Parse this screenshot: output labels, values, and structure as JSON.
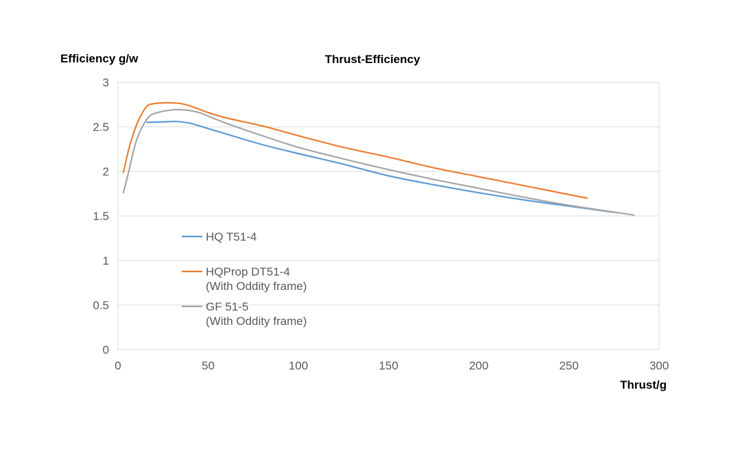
{
  "chart_data": {
    "type": "line",
    "title": "Thrust-Efficiency",
    "xlabel": "Thrust/g",
    "ylabel": "Efficiency g/w",
    "xlim": [
      0,
      300
    ],
    "ylim": [
      0,
      3
    ],
    "xticks": [
      0,
      50,
      100,
      150,
      200,
      250,
      300
    ],
    "yticks": [
      0,
      0.5,
      1,
      1.5,
      2,
      2.5,
      3
    ],
    "x_tick_labels": [
      "0",
      "50",
      "100",
      "150",
      "200",
      "250",
      "300"
    ],
    "y_tick_labels": [
      "0",
      "0.5",
      "1",
      "1.5",
      "2",
      "2.5",
      "3"
    ],
    "grid": true,
    "legend_position": "center-left",
    "series": [
      {
        "name": "HQ T51-4",
        "legend_lines": [
          "HQ T51-4"
        ],
        "color": "#5b9bd5",
        "x": [
          16,
          25,
          32,
          40,
          50,
          60,
          80,
          100,
          125,
          150,
          175,
          200,
          225,
          250,
          275
        ],
        "y": [
          2.55,
          2.555,
          2.56,
          2.54,
          2.48,
          2.42,
          2.3,
          2.2,
          2.08,
          1.95,
          1.85,
          1.76,
          1.68,
          1.61,
          1.54
        ]
      },
      {
        "name": "HQProp DT51-4 (With Oddity frame)",
        "legend_lines": [
          "HQProp DT51-4",
          "(With Oddity frame)"
        ],
        "color": "#ed7d31",
        "x": [
          3,
          6,
          9,
          12,
          16,
          20,
          27,
          35,
          42,
          50,
          60,
          80,
          100,
          125,
          150,
          175,
          200,
          225,
          260
        ],
        "y": [
          1.99,
          2.25,
          2.45,
          2.6,
          2.73,
          2.76,
          2.77,
          2.76,
          2.72,
          2.66,
          2.6,
          2.51,
          2.4,
          2.27,
          2.16,
          2.04,
          1.94,
          1.84,
          1.7
        ]
      },
      {
        "name": "GF 51-5 (With Oddity frame)",
        "legend_lines": [
          "GF 51-5",
          "(With Oddity frame)"
        ],
        "color": "#a5a5a5",
        "x": [
          3,
          6,
          9,
          12,
          17,
          22,
          30,
          37,
          45,
          50,
          60,
          80,
          100,
          125,
          150,
          175,
          200,
          225,
          250,
          286
        ],
        "y": [
          1.76,
          2.0,
          2.26,
          2.44,
          2.61,
          2.66,
          2.69,
          2.69,
          2.66,
          2.62,
          2.54,
          2.4,
          2.27,
          2.14,
          2.02,
          1.91,
          1.81,
          1.71,
          1.62,
          1.51
        ]
      }
    ]
  }
}
